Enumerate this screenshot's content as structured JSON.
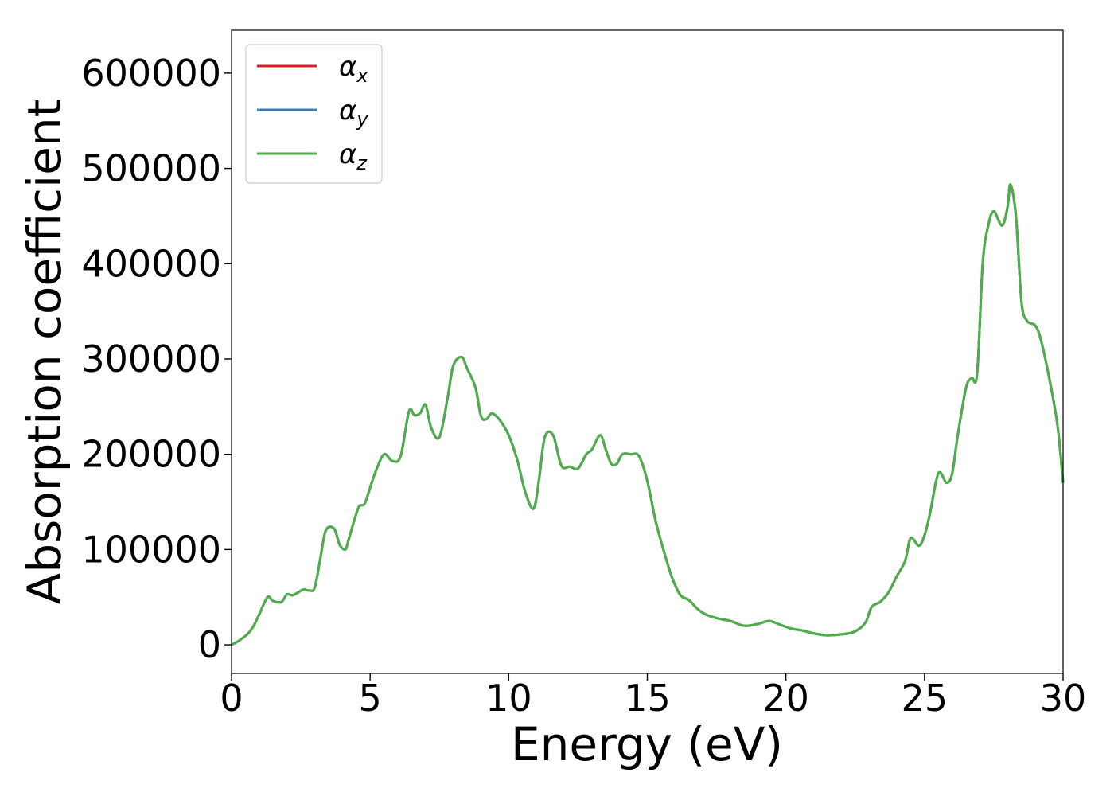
{
  "chart_data": {
    "type": "line",
    "title": "",
    "xlabel": "Energy (eV)",
    "ylabel": "Absorption coefficient",
    "xlim": [
      0,
      30
    ],
    "ylim": [
      -30000,
      645000
    ],
    "xticks": [
      0,
      5,
      10,
      15,
      20,
      25,
      30
    ],
    "yticks": [
      0,
      100000,
      200000,
      300000,
      400000,
      500000,
      600000
    ],
    "grid": false,
    "legend": "top-left",
    "legend_entries": [
      {
        "symbol": "α",
        "subscript": "x",
        "color": "#e41a1c"
      },
      {
        "symbol": "α",
        "subscript": "y",
        "color": "#377eb8"
      },
      {
        "symbol": "α",
        "subscript": "z",
        "color": "#4daf4a"
      }
    ],
    "x": [
      0,
      0.3,
      0.6,
      0.8,
      1.0,
      1.3,
      1.5,
      1.8,
      2.0,
      2.2,
      2.4,
      2.6,
      2.8,
      3.0,
      3.2,
      3.4,
      3.7,
      3.9,
      4.1,
      4.2,
      4.4,
      4.6,
      4.8,
      5.0,
      5.2,
      5.5,
      5.8,
      6.1,
      6.4,
      6.6,
      6.8,
      7.0,
      7.2,
      7.5,
      7.8,
      8.0,
      8.3,
      8.5,
      8.8,
      9.0,
      9.2,
      9.4,
      9.7,
      10.0,
      10.3,
      10.6,
      10.9,
      11.1,
      11.3,
      11.6,
      11.9,
      12.2,
      12.5,
      12.8,
      13.0,
      13.3,
      13.5,
      13.7,
      13.9,
      14.1,
      14.4,
      14.7,
      15.0,
      15.3,
      15.6,
      15.9,
      16.2,
      16.5,
      16.8,
      17.1,
      17.5,
      18.0,
      18.5,
      19.0,
      19.4,
      19.8,
      20.2,
      20.6,
      21.0,
      21.5,
      22.0,
      22.4,
      22.7,
      22.9,
      23.1,
      23.4,
      23.7,
      24.0,
      24.3,
      24.5,
      24.8,
      25.0,
      25.2,
      25.5,
      25.8,
      26.0,
      26.2,
      26.5,
      26.7,
      26.9,
      27.1,
      27.3,
      27.5,
      27.8,
      28.0,
      28.1,
      28.3,
      28.5,
      28.7,
      29.0,
      29.2,
      29.5,
      29.8,
      30.0
    ],
    "series": [
      {
        "name": "αx",
        "color": "#e41a1c",
        "values": [
          0,
          5000,
          12000,
          20000,
          32000,
          50000,
          46000,
          45000,
          53000,
          52000,
          55000,
          58000,
          57000,
          60000,
          90000,
          120000,
          122000,
          105000,
          100000,
          108000,
          128000,
          145000,
          148000,
          165000,
          182000,
          200000,
          193000,
          198000,
          245000,
          241000,
          243000,
          252000,
          228000,
          218000,
          260000,
          293000,
          302000,
          290000,
          270000,
          240000,
          237000,
          243000,
          235000,
          220000,
          195000,
          160000,
          143000,
          175000,
          218000,
          220000,
          188000,
          187000,
          185000,
          200000,
          205000,
          220000,
          205000,
          190000,
          190000,
          200000,
          200000,
          198000,
          172000,
          130000,
          98000,
          70000,
          52000,
          47000,
          38000,
          32000,
          28000,
          25000,
          20000,
          22000,
          25000,
          21000,
          17000,
          15000,
          12000,
          10000,
          11000,
          13000,
          18000,
          25000,
          40000,
          45000,
          55000,
          72000,
          88000,
          112000,
          104000,
          115000,
          138000,
          180000,
          170000,
          180000,
          220000,
          270000,
          280000,
          285000,
          400000,
          440000,
          455000,
          440000,
          460000,
          483000,
          450000,
          360000,
          340000,
          335000,
          320000,
          280000,
          230000,
          170000
        ]
      },
      {
        "name": "αy",
        "color": "#377eb8",
        "values": [
          0,
          5000,
          12000,
          20000,
          32000,
          50000,
          46000,
          45000,
          53000,
          52000,
          55000,
          58000,
          57000,
          60000,
          90000,
          120000,
          122000,
          105000,
          100000,
          108000,
          128000,
          145000,
          148000,
          165000,
          182000,
          200000,
          193000,
          198000,
          245000,
          241000,
          243000,
          252000,
          228000,
          218000,
          260000,
          293000,
          302000,
          290000,
          270000,
          240000,
          237000,
          243000,
          235000,
          220000,
          195000,
          160000,
          143000,
          175000,
          218000,
          220000,
          188000,
          187000,
          185000,
          200000,
          205000,
          220000,
          205000,
          190000,
          190000,
          200000,
          200000,
          198000,
          172000,
          130000,
          98000,
          70000,
          52000,
          47000,
          38000,
          32000,
          28000,
          25000,
          20000,
          22000,
          25000,
          21000,
          17000,
          15000,
          12000,
          10000,
          11000,
          13000,
          18000,
          25000,
          40000,
          45000,
          55000,
          72000,
          88000,
          112000,
          104000,
          115000,
          138000,
          180000,
          170000,
          180000,
          220000,
          270000,
          280000,
          285000,
          400000,
          440000,
          455000,
          440000,
          460000,
          483000,
          450000,
          360000,
          340000,
          335000,
          320000,
          280000,
          230000,
          170000
        ]
      },
      {
        "name": "αz",
        "color": "#4daf4a",
        "values": [
          0,
          5000,
          12000,
          20000,
          32000,
          50000,
          46000,
          45000,
          53000,
          52000,
          55000,
          58000,
          57000,
          60000,
          90000,
          120000,
          122000,
          105000,
          100000,
          108000,
          128000,
          145000,
          148000,
          165000,
          182000,
          200000,
          193000,
          198000,
          245000,
          241000,
          243000,
          252000,
          228000,
          218000,
          260000,
          293000,
          302000,
          290000,
          270000,
          240000,
          237000,
          243000,
          235000,
          220000,
          195000,
          160000,
          143000,
          175000,
          218000,
          220000,
          188000,
          187000,
          185000,
          200000,
          205000,
          220000,
          205000,
          190000,
          190000,
          200000,
          200000,
          198000,
          172000,
          130000,
          98000,
          70000,
          52000,
          47000,
          38000,
          32000,
          28000,
          25000,
          20000,
          22000,
          25000,
          21000,
          17000,
          15000,
          12000,
          10000,
          11000,
          13000,
          18000,
          25000,
          40000,
          45000,
          55000,
          72000,
          88000,
          112000,
          104000,
          115000,
          138000,
          180000,
          170000,
          180000,
          220000,
          270000,
          280000,
          285000,
          400000,
          440000,
          455000,
          440000,
          460000,
          483000,
          450000,
          360000,
          340000,
          335000,
          320000,
          280000,
          230000,
          170000
        ]
      }
    ]
  }
}
